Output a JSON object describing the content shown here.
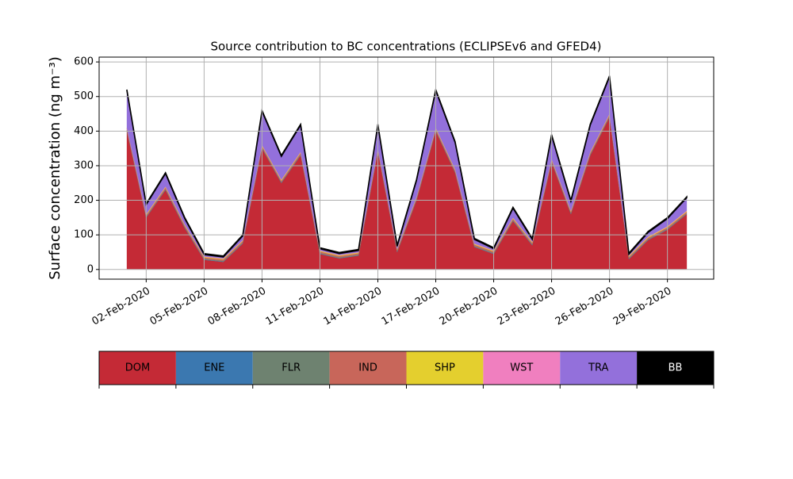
{
  "chart_data": {
    "type": "stacked-area",
    "title": "Source contribution to BC concentrations (ECLIPSEv6 and GFED4)",
    "ylabel": "Surface concentration (ng m⁻³)",
    "x": [
      "01-Feb-2020",
      "02-Feb-2020",
      "03-Feb-2020",
      "04-Feb-2020",
      "05-Feb-2020",
      "06-Feb-2020",
      "07-Feb-2020",
      "08-Feb-2020",
      "09-Feb-2020",
      "10-Feb-2020",
      "11-Feb-2020",
      "12-Feb-2020",
      "13-Feb-2020",
      "14-Feb-2020",
      "15-Feb-2020",
      "16-Feb-2020",
      "17-Feb-2020",
      "18-Feb-2020",
      "19-Feb-2020",
      "20-Feb-2020",
      "21-Feb-2020",
      "22-Feb-2020",
      "23-Feb-2020",
      "24-Feb-2020",
      "25-Feb-2020",
      "26-Feb-2020",
      "27-Feb-2020",
      "28-Feb-2020",
      "29-Feb-2020",
      "01-Mar-2020"
    ],
    "xticks": [
      "02-Feb-2020",
      "05-Feb-2020",
      "08-Feb-2020",
      "11-Feb-2020",
      "14-Feb-2020",
      "17-Feb-2020",
      "20-Feb-2020",
      "23-Feb-2020",
      "26-Feb-2020",
      "29-Feb-2020"
    ],
    "ylim": [
      -28,
      614
    ],
    "yticks": [
      0,
      100,
      200,
      300,
      400,
      500,
      600
    ],
    "grid": true,
    "series": [
      {
        "name": "DOM",
        "color": "#c42a36",
        "values": [
          400,
          150,
          230,
          120,
          28,
          22,
          75,
          350,
          250,
          330,
          45,
          32,
          40,
          340,
          50,
          200,
          400,
          280,
          65,
          45,
          140,
          70,
          310,
          160,
          330,
          440,
          30,
          85,
          115,
          160
        ]
      },
      {
        "name": "ENE",
        "color": "#3b78b0",
        "values": [
          1,
          1,
          1,
          1,
          1,
          1,
          1,
          1,
          1,
          1,
          1,
          1,
          1,
          1,
          1,
          1,
          1,
          1,
          1,
          1,
          1,
          1,
          1,
          1,
          1,
          1,
          1,
          1,
          1,
          1
        ]
      },
      {
        "name": "FLR",
        "color": "#6e8270",
        "values": [
          2,
          2,
          2,
          2,
          2,
          2,
          2,
          2,
          2,
          2,
          2,
          2,
          2,
          2,
          2,
          2,
          2,
          2,
          2,
          2,
          2,
          2,
          2,
          2,
          2,
          2,
          2,
          2,
          2,
          2
        ]
      },
      {
        "name": "IND",
        "color": "#c8665a",
        "values": [
          4,
          4,
          4,
          4,
          4,
          4,
          4,
          4,
          4,
          4,
          4,
          4,
          4,
          4,
          4,
          4,
          4,
          4,
          4,
          4,
          4,
          4,
          4,
          4,
          4,
          4,
          4,
          4,
          4,
          4
        ]
      },
      {
        "name": "SHP",
        "color": "#e4cf2e",
        "values": [
          2,
          2,
          2,
          2,
          2,
          2,
          2,
          2,
          2,
          2,
          2,
          2,
          2,
          2,
          2,
          2,
          2,
          2,
          2,
          2,
          2,
          2,
          2,
          2,
          2,
          2,
          2,
          2,
          2,
          2
        ]
      },
      {
        "name": "WST",
        "color": "#f07fbf",
        "values": [
          1,
          1,
          1,
          1,
          1,
          1,
          1,
          1,
          1,
          1,
          1,
          1,
          1,
          1,
          1,
          1,
          1,
          1,
          1,
          1,
          1,
          1,
          1,
          1,
          1,
          1,
          1,
          1,
          1,
          1
        ]
      },
      {
        "name": "TRA",
        "color": "#9370db",
        "values": [
          107,
          27,
          37,
          17,
          5,
          4,
          12,
          97,
          67,
          77,
          5,
          4,
          5,
          67,
          7,
          47,
          107,
          77,
          12,
          5,
          27,
          7,
          67,
          27,
          77,
          107,
          4,
          12,
          22,
          37
        ]
      },
      {
        "name": "BB",
        "color": "#000000",
        "values": [
          3,
          3,
          3,
          3,
          3,
          3,
          3,
          3,
          3,
          3,
          3,
          3,
          3,
          3,
          3,
          3,
          3,
          3,
          3,
          3,
          3,
          3,
          3,
          3,
          3,
          3,
          3,
          3,
          3,
          3
        ]
      }
    ]
  }
}
